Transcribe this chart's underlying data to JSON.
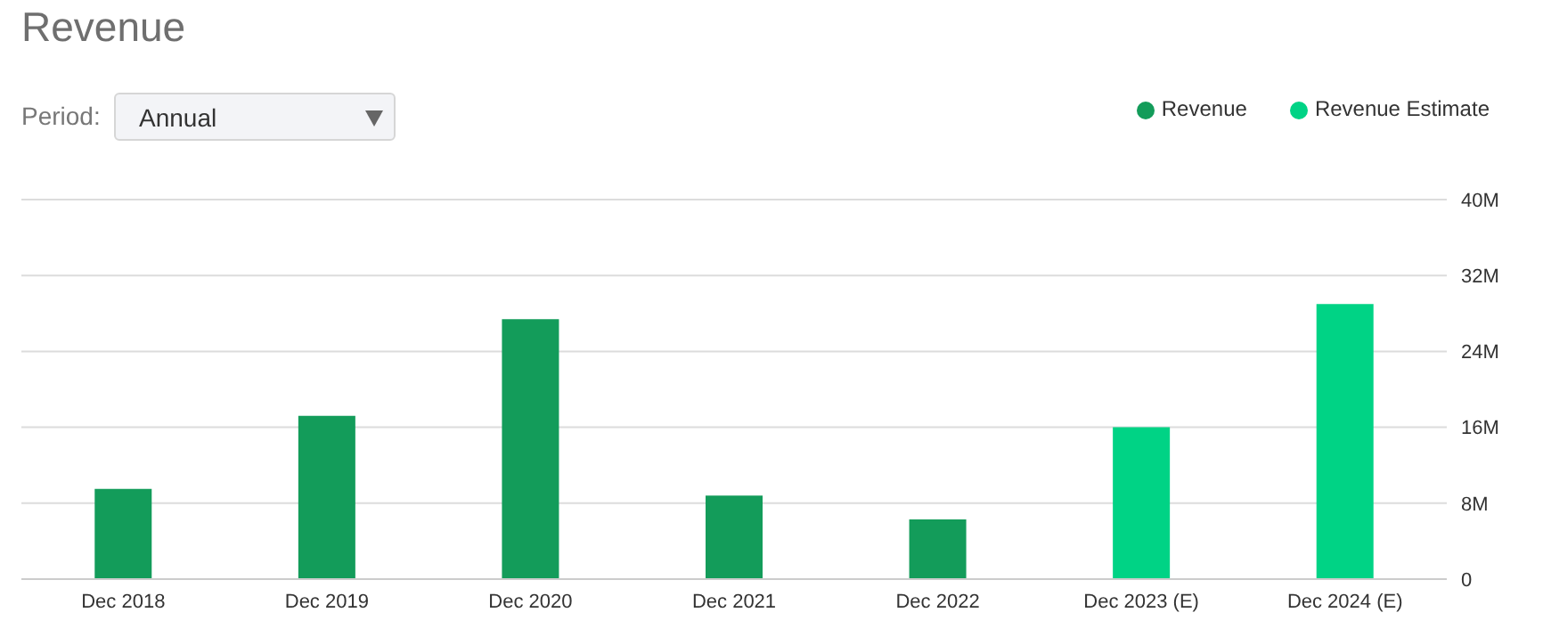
{
  "chart_data": {
    "type": "bar",
    "title": "Revenue",
    "annotations": [
      "Period:",
      "Annual"
    ],
    "categories": [
      "Dec 2018",
      "Dec 2019",
      "Dec 2020",
      "Dec 2021",
      "Dec 2022",
      "Dec 2023 (E)",
      "Dec 2024 (E)"
    ],
    "series": [
      {
        "name": "Revenue",
        "color": "#139c5a",
        "values": [
          9.5,
          17.2,
          27.4,
          8.8,
          6.3,
          null,
          null
        ]
      },
      {
        "name": "Revenue Estimate",
        "color": "#00d385",
        "values": [
          null,
          null,
          null,
          null,
          null,
          16.0,
          29.0
        ]
      }
    ],
    "stacked": true,
    "ylim": [
      0,
      40
    ],
    "yticks": [
      0,
      {
        "value": 8,
        "label": "8M"
      },
      {
        "value": 16,
        "label": "16M"
      },
      {
        "value": 24,
        "label": "24M"
      },
      {
        "value": 32,
        "label": "32M"
      },
      {
        "value": 40,
        "label": "40M"
      }
    ],
    "grid": "y",
    "legend": "top right"
  }
}
